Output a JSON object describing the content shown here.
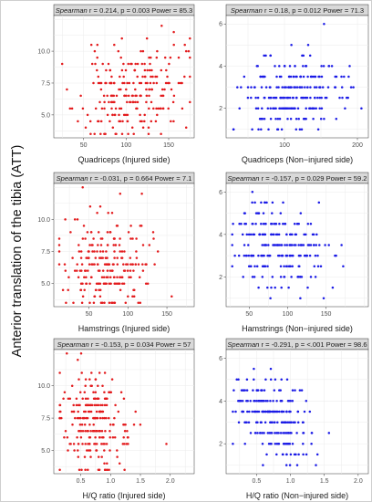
{
  "figure": {
    "y_label": "Anterior translation of the tibia (ATT)"
  },
  "colors": {
    "injured": "#e31a1c",
    "non_injured": "#1a1ae6",
    "strip_bg": "#d9d9d9",
    "grid": "#ebebeb"
  },
  "chart_data": [
    {
      "type": "scatter",
      "strip": {
        "stat_name": "Spearman",
        "r": "r = 0.214,",
        "p": "p = 0.003",
        "power": "Power = 85.3"
      },
      "xlabel": "Quadriceps (Injured side)",
      "xlim": [
        15,
        180
      ],
      "ylim": [
        3.2,
        12.8
      ],
      "x_ticks": [
        50,
        100,
        150
      ],
      "y_ticks": [
        5.0,
        7.5,
        10.0
      ],
      "y_tick_labels": [
        "5.0",
        "7.5",
        "10.0"
      ],
      "color": "#e31a1c",
      "gen": {
        "n": 230,
        "seed": 11,
        "x_min": 22,
        "x_max": 175,
        "x_mean": 105,
        "x_sd": 30,
        "y_min": 3.5,
        "y_max": 12.5,
        "y_base": 6.7,
        "y_slope": 0.014,
        "y_sd": 1.9,
        "y_step": 0.5
      }
    },
    {
      "type": "scatter",
      "strip": {
        "stat_name": "Spearman",
        "r": "r = 0.18,",
        "p": "p = 0.012",
        "power": "Power = 71.3"
      },
      "xlabel": "Quadriceps (Non−injured side)",
      "xlim": [
        20,
        215
      ],
      "ylim": [
        0.6,
        6.4
      ],
      "x_ticks": [
        100,
        200
      ],
      "y_ticks": [
        2,
        4,
        6
      ],
      "y_tick_labels": [
        "2",
        "4",
        "6"
      ],
      "color": "#1a1ae6",
      "gen": {
        "n": 230,
        "seed": 23,
        "x_min": 30,
        "x_max": 210,
        "x_mean": 110,
        "x_sd": 35,
        "y_min": 1.0,
        "y_max": 6.0,
        "y_base": 2.6,
        "y_slope": 0.006,
        "y_sd": 0.95,
        "y_step": 0.5
      }
    },
    {
      "type": "scatter",
      "strip": {
        "stat_name": "Spearman",
        "r": "r = -0.031,",
        "p": "p = 0.664",
        "power": "Power = 7.1"
      },
      "xlabel": "Hamstrings (Injured side)",
      "xlim": [
        5,
        185
      ],
      "ylim": [
        3.2,
        12.8
      ],
      "x_ticks": [
        50,
        100,
        150
      ],
      "y_ticks": [
        5.0,
        7.5,
        10.0
      ],
      "y_tick_labels": [
        "5.0",
        "7.5",
        "10.0"
      ],
      "color": "#e31a1c",
      "gen": {
        "n": 230,
        "seed": 37,
        "x_min": 12,
        "x_max": 178,
        "x_mean": 75,
        "x_sd": 28,
        "y_min": 3.5,
        "y_max": 12.5,
        "y_base": 6.5,
        "y_slope": -0.001,
        "y_sd": 1.9,
        "y_step": 0.5
      }
    },
    {
      "type": "scatter",
      "strip": {
        "stat_name": "Spearman",
        "r": "r = -0.157,",
        "p": "p = 0.029",
        "power": "Power = 59.2"
      },
      "xlabel": "Hamstrings (Non−injured side)",
      "xlim": [
        20,
        205
      ],
      "ylim": [
        0.6,
        6.4
      ],
      "x_ticks": [
        50,
        100,
        150
      ],
      "y_ticks": [
        2,
        4,
        6
      ],
      "y_tick_labels": [
        "2",
        "4",
        "6"
      ],
      "color": "#1a1ae6",
      "gen": {
        "n": 230,
        "seed": 51,
        "x_min": 28,
        "x_max": 200,
        "x_mean": 85,
        "x_sd": 30,
        "y_min": 1.0,
        "y_max": 6.0,
        "y_base": 3.3,
        "y_slope": -0.007,
        "y_sd": 0.95,
        "y_step": 0.5
      }
    },
    {
      "type": "scatter",
      "strip": {
        "stat_name": "Spearman",
        "r": "r = -0.153,",
        "p": "p = 0.034",
        "power": "Power = 57"
      },
      "xlabel": "H/Q ratio (Injured side)",
      "xlim": [
        0.05,
        2.4
      ],
      "ylim": [
        3.2,
        12.8
      ],
      "x_ticks": [
        0.5,
        1.0,
        1.5,
        2.0
      ],
      "y_ticks": [
        5.0,
        7.5,
        10.0
      ],
      "y_tick_labels": [
        "5.0",
        "7.5",
        "10.0"
      ],
      "x_tick_labels": [
        "0.5",
        "1.0",
        "1.5",
        "2.0"
      ],
      "color": "#e31a1c",
      "gen": {
        "n": 230,
        "seed": 67,
        "x_min": 0.15,
        "x_max": 2.3,
        "x_mean": 0.7,
        "x_sd": 0.3,
        "y_min": 3.5,
        "y_max": 12.5,
        "y_base": 7.4,
        "y_slope": -1.2,
        "y_sd": 1.9,
        "y_step": 0.5
      }
    },
    {
      "type": "scatter",
      "strip": {
        "stat_name": "Spearman",
        "r": "r = -0.291,",
        "p": "p = <.001",
        "power": "Power = 98.6"
      },
      "xlabel": "H/Q ratio (Non−injured side)",
      "xlim": [
        0.05,
        2.15
      ],
      "ylim": [
        0.6,
        6.4
      ],
      "x_ticks": [
        0.5,
        1.0,
        1.5,
        2.0
      ],
      "y_ticks": [
        2,
        4,
        6
      ],
      "y_tick_labels": [
        "2",
        "4",
        "6"
      ],
      "x_tick_labels": [
        "0.5",
        "1.0",
        "1.5",
        "2.0"
      ],
      "color": "#1a1ae6",
      "gen": {
        "n": 230,
        "seed": 83,
        "x_min": 0.15,
        "x_max": 2.1,
        "x_mean": 0.7,
        "x_sd": 0.3,
        "y_min": 1.0,
        "y_max": 6.0,
        "y_base": 3.3,
        "y_slope": -1.1,
        "y_sd": 0.95,
        "y_step": 0.5
      }
    }
  ]
}
